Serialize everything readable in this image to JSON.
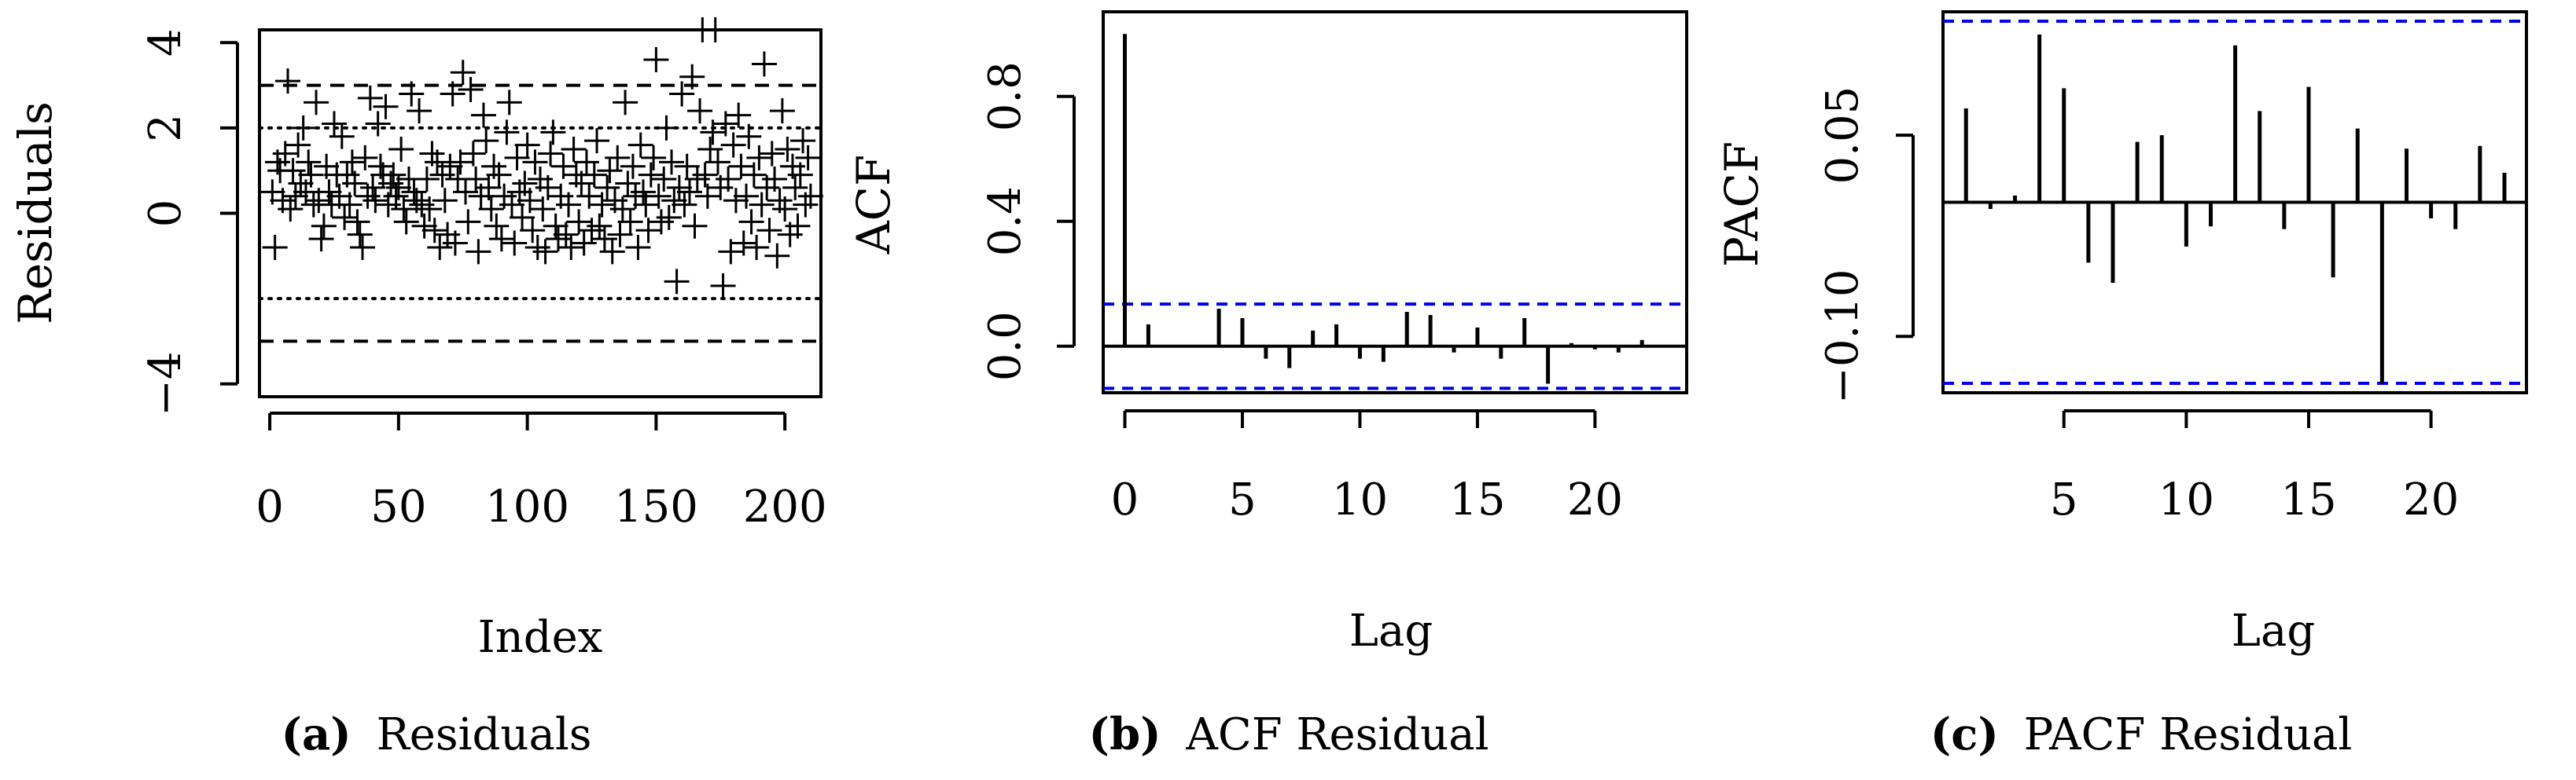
{
  "colors": {
    "ink": "#000000",
    "confidence": "#0000ee",
    "background": "#ffffff"
  },
  "chart_data": [
    {
      "type": "scatter",
      "panel": "a",
      "caption_letter": "(a)",
      "caption_text": "Residuals",
      "xlabel": "Index",
      "ylabel": "Residuals",
      "xlim": [
        -4,
        214
      ],
      "ylim": [
        -4.3,
        4.3
      ],
      "xticks": [
        0,
        50,
        100,
        150,
        200
      ],
      "xtick_labels": [
        "0",
        "50",
        "100",
        "150",
        "200"
      ],
      "yticks": [
        -4,
        0,
        2,
        4
      ],
      "ytick_labels": [
        "−4",
        "0",
        "2",
        "4"
      ],
      "marker": "plus",
      "dashed_lines": [
        3,
        -3
      ],
      "dotted_lines": [
        2,
        -2
      ],
      "y": [
        0.5,
        -0.8,
        1.2,
        1,
        0.3,
        1.4,
        3.1,
        0.1,
        1,
        0.4,
        1.6,
        0.7,
        2,
        0.5,
        1.2,
        0.9,
        0.2,
        2.6,
        0.3,
        -0.6,
        -0.3,
        1.1,
        0.5,
        0.2,
        2.1,
        0.9,
        0.4,
        1.8,
        -0.1,
        0.9,
        0.2,
        1.2,
        0.7,
        -0.2,
        -0.5,
        -0.8,
        1.3,
        0.4,
        2.7,
        0.6,
        0.3,
        2.1,
        1.1,
        0.9,
        2.5,
        0.2,
        0.7,
        0.9,
        0.4,
        0.6,
        1.5,
        0.1,
        -0.2,
        0.8,
        2.8,
        0.5,
        0.3,
        2.4,
        0.2,
        -0.3,
        0.8,
        0.1,
        1.4,
        -0.4,
        1.2,
        -0.8,
        0.9,
        0.3,
        -0.5,
        1.1,
        2.8,
        -0.7,
        0.8,
        1.2,
        3.3,
        0.5,
        -0.2,
        2.9,
        1.4,
        0.8,
        -0.9,
        0.4,
        2.3,
        1.7,
        0.6,
        0.1,
        1.1,
        -0.3,
        0.9,
        -0.6,
        0.4,
        1.9,
        2.6,
        0.2,
        -0.7,
        1.3,
        0.5,
        -0.1,
        0.7,
        1.6,
        0.3,
        -0.4,
        1.2,
        -0.8,
        0.8,
        0.1,
        -0.9,
        0.6,
        1.4,
        1.9,
        -0.3,
        -0.6,
        0.4,
        1.1,
        -0.5,
        0.2,
        -0.8,
        1.5,
        0.9,
        -0.2,
        0.7,
        -0.7,
        1.2,
        0.4,
        -0.4,
        0.9,
        1.7,
        -0.3,
        0.2,
        -0.6,
        0.6,
        1,
        -0.9,
        0.3,
        1.3,
        -0.5,
        0.1,
        2.6,
        0.7,
        -0.2,
        1.1,
        0.4,
        -0.8,
        1.6,
        0.5,
        0.2,
        -0.4,
        0.9,
        1.3,
        3.6,
        0.4,
        -0.2,
        0.8,
        2,
        -0.1,
        1.2,
        0.3,
        -1.6,
        0.6,
        2.8,
        0.2,
        1.1,
        0.5,
        3.2,
        -0.3,
        0.8,
        2.4,
        4.3,
        0.9,
        0.4,
        1.5,
        1.9,
        4.3,
        1.2,
        0.6,
        -1.7,
        2.1,
        0.8,
        -0.9,
        1.6,
        0.3,
        2.3,
        1.1,
        -0.7,
        0.4,
        1.8,
        -0.2,
        0.9,
        -0.8,
        1.3,
        0.2,
        3.5,
        0.6,
        -0.4,
        1.4,
        0.8,
        -1,
        0.3,
        2.4,
        0.1,
        1.5,
        -0.5,
        1.1,
        0.6,
        -0.3,
        0.9,
        1.7,
        0.2,
        1.3,
        0.4
      ]
    },
    {
      "type": "bar",
      "panel": "b",
      "caption_letter": "(b)",
      "caption_text": "ACF Residual",
      "xlabel": "Lag",
      "ylabel": "ACF",
      "xlim": [
        -0.92,
        23.9
      ],
      "ylim": [
        -0.149,
        1.071
      ],
      "xticks": [
        0,
        5,
        10,
        15,
        20
      ],
      "xtick_labels": [
        "0",
        "5",
        "10",
        "15",
        "20"
      ],
      "yticks": [
        0.0,
        0.4,
        0.8
      ],
      "ytick_labels": [
        "0.0",
        "0.4",
        "0.8"
      ],
      "confidence_band": [
        0.135,
        -0.135
      ],
      "lags": [
        0,
        1,
        2,
        3,
        4,
        5,
        6,
        7,
        8,
        9,
        10,
        11,
        12,
        13,
        14,
        15,
        16,
        17,
        18,
        19,
        20,
        21,
        22,
        23
      ],
      "values": [
        1.0,
        0.07,
        0.0,
        0.0,
        0.12,
        0.09,
        -0.04,
        -0.07,
        0.05,
        0.07,
        -0.04,
        -0.05,
        0.11,
        0.1,
        -0.02,
        0.06,
        -0.04,
        0.09,
        -0.12,
        0.01,
        -0.01,
        -0.02,
        0.02,
        0.0
      ]
    },
    {
      "type": "bar",
      "panel": "c",
      "caption_letter": "(c)",
      "caption_text": "PACF Residual",
      "xlabel": "Lag",
      "ylabel": "PACF",
      "xlim": [
        0.06,
        23.9
      ],
      "ylim": [
        -0.142,
        0.142
      ],
      "xticks": [
        5,
        10,
        15,
        20
      ],
      "xtick_labels": [
        "5",
        "10",
        "15",
        "20"
      ],
      "yticks": [
        -0.1,
        0.05
      ],
      "ytick_labels": [
        "−0.10",
        "0.05"
      ],
      "confidence_band": [
        0.135,
        -0.135
      ],
      "lags": [
        1,
        2,
        3,
        4,
        5,
        6,
        7,
        8,
        9,
        10,
        11,
        12,
        13,
        14,
        15,
        16,
        17,
        18,
        19,
        20,
        21,
        22,
        23
      ],
      "values": [
        0.07,
        -0.005,
        0.005,
        0.125,
        0.085,
        -0.045,
        -0.06,
        0.045,
        0.05,
        -0.033,
        -0.018,
        0.117,
        0.068,
        -0.02,
        0.086,
        -0.056,
        0.055,
        -0.135,
        0.04,
        -0.012,
        -0.02,
        0.042,
        0.022
      ]
    }
  ]
}
